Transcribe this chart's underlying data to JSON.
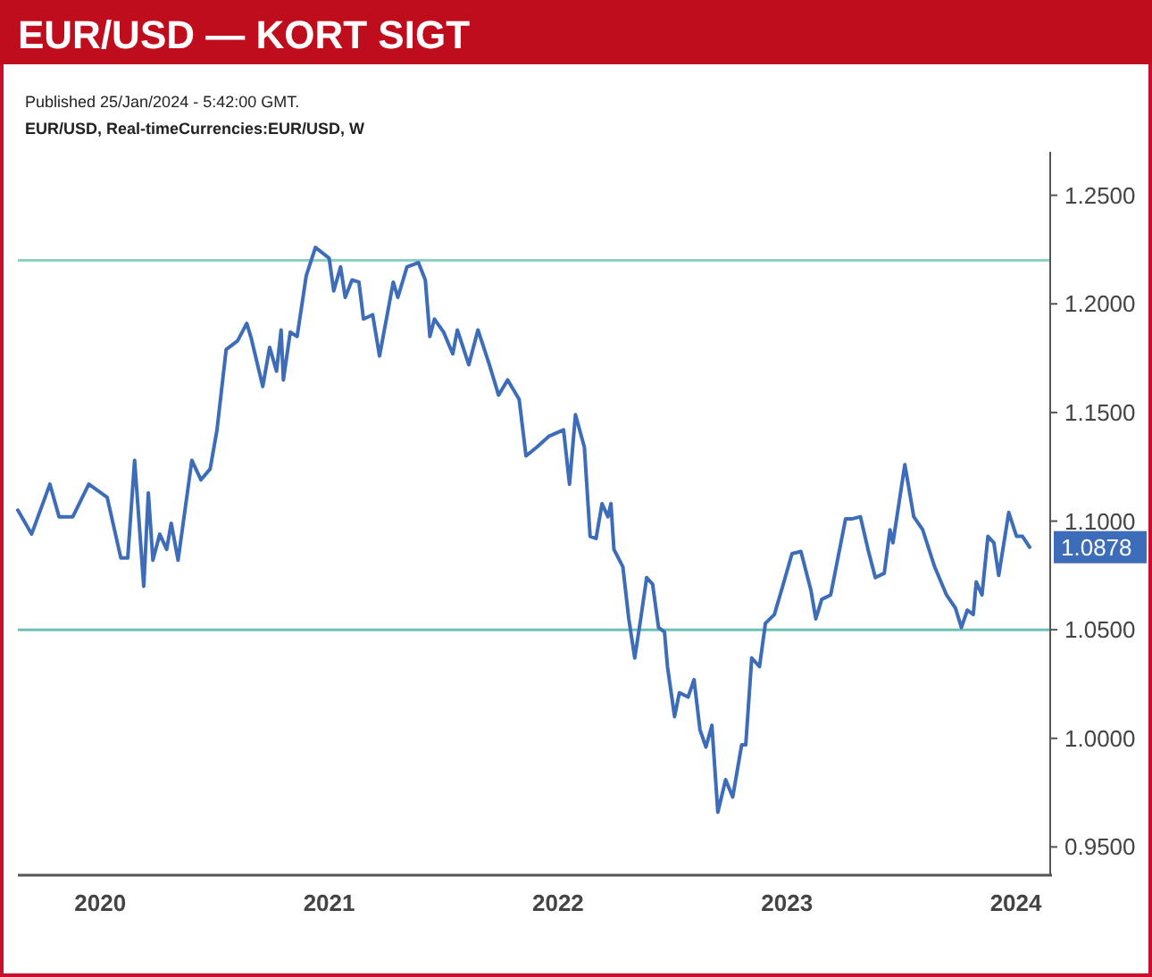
{
  "chart_data": {
    "type": "line",
    "title": "EUR/USD — KORT SIGT",
    "subtitle": "Published 25/Jan/2024 - 5:42:00 GMT.",
    "annotations": [
      "EUR/USD, Real-timeCurrencies:EUR/USD, W",
      "1.0878"
    ],
    "series": [
      {
        "color": "#3d6cb9",
        "x": [
          2019.64,
          2019.7,
          2019.78,
          2019.82,
          2019.88,
          2019.95,
          2020.03,
          2020.09,
          2020.12,
          2020.15,
          2020.19,
          2020.21,
          2020.23,
          2020.26,
          2020.29,
          2020.31,
          2020.34,
          2020.4,
          2020.44,
          2020.48,
          2020.51,
          2020.55,
          2020.6,
          2020.64,
          2020.66,
          2020.71,
          2020.74,
          2020.77,
          2020.79,
          2020.8,
          2020.83,
          2020.86,
          2020.9,
          2020.94,
          2021.0,
          2021.02,
          2021.05,
          2021.07,
          2021.1,
          2021.13,
          2021.15,
          2021.19,
          2021.22,
          2021.28,
          2021.3,
          2021.34,
          2021.39,
          2021.42,
          2021.44,
          2021.46,
          2021.5,
          2021.54,
          2021.56,
          2021.61,
          2021.65,
          2021.7,
          2021.74,
          2021.78,
          2021.83,
          2021.86,
          2021.907,
          2021.959,
          2022.024,
          2022.05,
          2022.076,
          2022.115,
          2022.14,
          2022.166,
          2022.192,
          2022.218,
          2022.231,
          2022.244,
          2022.283,
          2022.309,
          2022.335,
          2022.361,
          2022.387,
          2022.413,
          2022.439,
          2022.465,
          2022.478,
          2022.509,
          2022.53,
          2022.568,
          2022.594,
          2022.62,
          2022.646,
          2022.672,
          2022.698,
          2022.732,
          2022.763,
          2022.802,
          2022.82,
          2022.846,
          2022.88,
          2022.906,
          2022.945,
          2022.984,
          2023.022,
          2023.061,
          2023.105,
          2023.126,
          2023.152,
          2023.191,
          2023.256,
          2023.282,
          2023.321,
          2023.354,
          2023.386,
          2023.425,
          2023.45,
          2023.463,
          2023.515,
          2023.554,
          2023.593,
          2023.645,
          2023.697,
          2023.736,
          2023.762,
          2023.788,
          2023.814,
          2023.827,
          2023.852,
          2023.878,
          2023.904,
          2023.925,
          2023.969,
          2024.003,
          2024.029,
          2024.06
        ],
        "values": [
          1.105,
          1.094,
          1.117,
          1.102,
          1.102,
          1.117,
          1.111,
          1.083,
          1.083,
          1.128,
          1.07,
          1.113,
          1.082,
          1.094,
          1.087,
          1.099,
          1.082,
          1.128,
          1.119,
          1.124,
          1.142,
          1.179,
          1.183,
          1.191,
          1.184,
          1.162,
          1.18,
          1.169,
          1.188,
          1.165,
          1.187,
          1.185,
          1.213,
          1.226,
          1.221,
          1.206,
          1.217,
          1.203,
          1.211,
          1.21,
          1.193,
          1.195,
          1.176,
          1.21,
          1.203,
          1.217,
          1.219,
          1.211,
          1.185,
          1.193,
          1.187,
          1.177,
          1.188,
          1.172,
          1.188,
          1.172,
          1.158,
          1.165,
          1.156,
          1.13,
          1.134,
          1.139,
          1.142,
          1.117,
          1.149,
          1.134,
          1.093,
          1.092,
          1.108,
          1.102,
          1.108,
          1.087,
          1.079,
          1.055,
          1.037,
          1.055,
          1.074,
          1.071,
          1.051,
          1.049,
          1.033,
          1.01,
          1.021,
          1.019,
          1.027,
          1.004,
          0.996,
          1.006,
          0.966,
          0.981,
          0.973,
          0.997,
          0.997,
          1.037,
          1.033,
          1.053,
          1.057,
          1.071,
          1.085,
          1.086,
          1.068,
          1.055,
          1.064,
          1.066,
          1.101,
          1.101,
          1.102,
          1.087,
          1.074,
          1.076,
          1.096,
          1.09,
          1.126,
          1.102,
          1.096,
          1.079,
          1.066,
          1.06,
          1.051,
          1.059,
          1.057,
          1.072,
          1.066,
          1.093,
          1.09,
          1.075,
          1.104,
          1.093,
          1.093,
          1.088
        ]
      }
    ],
    "xlim": [
      2019.64,
      2024.15
    ],
    "xticks": [
      2020,
      2021,
      2022,
      2023,
      2024
    ],
    "ylim": [
      0.937,
      1.27
    ],
    "yticks": [
      {
        "value": 0.95,
        "label": "0.9500"
      },
      {
        "value": 1.0,
        "label": "1.0000"
      },
      {
        "value": 1.05,
        "label": "1.0500"
      },
      {
        "value": 1.1,
        "label": "1.1000"
      },
      {
        "value": 1.15,
        "label": "1.1500"
      },
      {
        "value": 1.2,
        "label": "1.2000"
      },
      {
        "value": 1.25,
        "label": "1.2500"
      }
    ],
    "ref_lines": [
      {
        "axis": "y",
        "value": 1.22,
        "color": "#8fcfc4"
      },
      {
        "axis": "y",
        "value": 1.05,
        "color": "#6fc0b4"
      }
    ],
    "grid": false
  }
}
